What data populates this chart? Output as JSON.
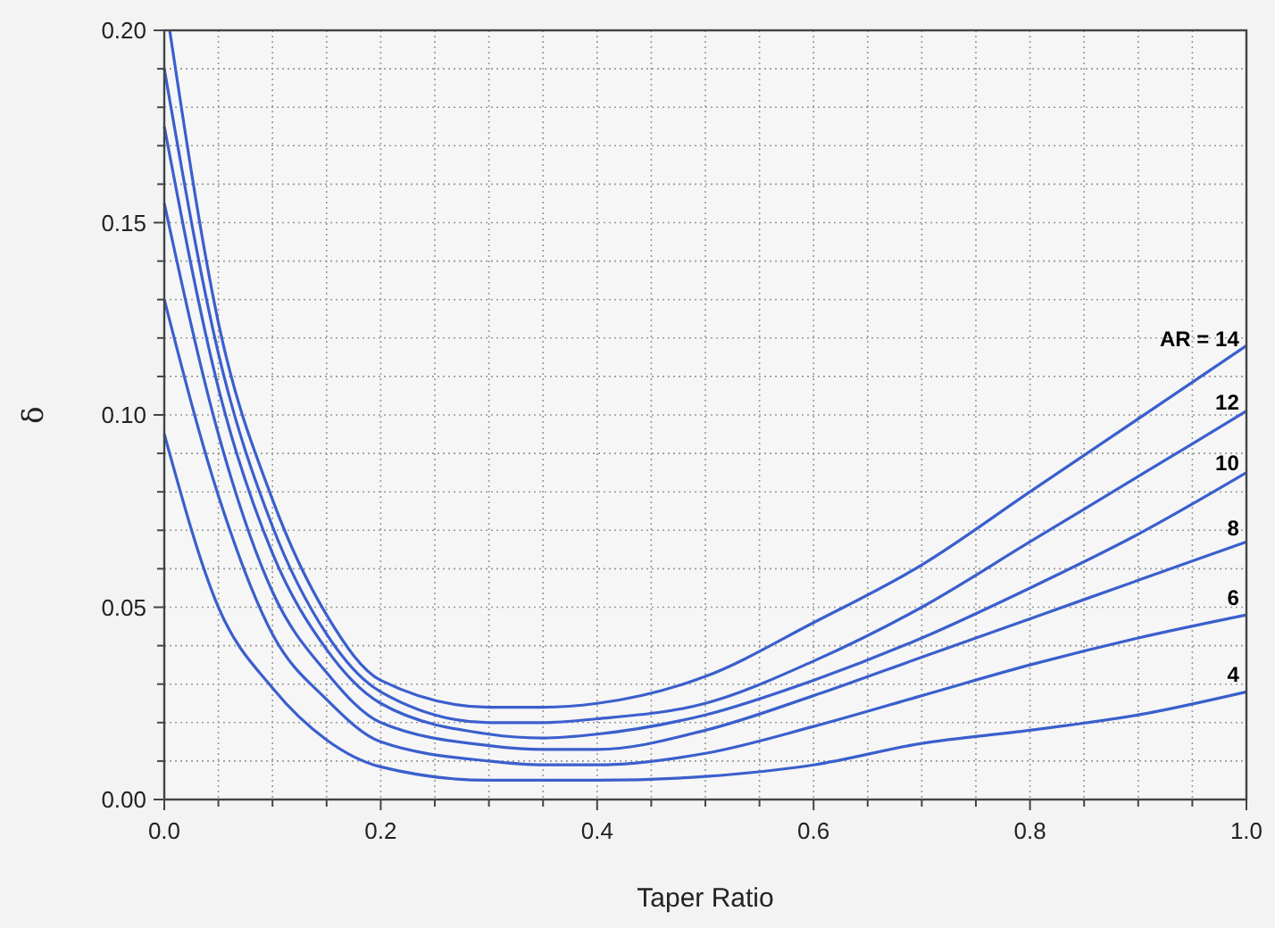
{
  "chart_data": {
    "type": "line",
    "xlabel": "Taper Ratio",
    "ylabel": "δ",
    "xlim": [
      0,
      1
    ],
    "ylim": [
      0,
      0.2
    ],
    "xticks": [
      {
        "value": 0,
        "label": "0.0"
      },
      {
        "value": 0.05,
        "label": null
      },
      {
        "value": 0.1,
        "label": null
      },
      {
        "value": 0.15,
        "label": null
      },
      0.2,
      {
        "value": 0.25,
        "label": null
      },
      {
        "value": 0.3,
        "label": null
      },
      {
        "value": 0.35,
        "label": null
      },
      0.4,
      {
        "value": 0.45,
        "label": null
      },
      {
        "value": 0.5,
        "label": null
      },
      {
        "value": 0.55,
        "label": null
      },
      0.6,
      {
        "value": 0.65,
        "label": null
      },
      {
        "value": 0.7,
        "label": null
      },
      {
        "value": 0.75,
        "label": null
      },
      0.8,
      {
        "value": 0.85,
        "label": null
      },
      {
        "value": 0.9,
        "label": null
      },
      {
        "value": 0.95,
        "label": null
      },
      {
        "value": 1,
        "label": "1.0"
      }
    ],
    "yticks": [
      {
        "value": 0,
        "label": "0.00"
      },
      {
        "value": 0.01,
        "label": null
      },
      {
        "value": 0.02,
        "label": null
      },
      {
        "value": 0.03,
        "label": null
      },
      {
        "value": 0.04,
        "label": null
      },
      {
        "value": 0.05,
        "label": "0.05"
      },
      {
        "value": 0.06,
        "label": null
      },
      {
        "value": 0.07,
        "label": null
      },
      {
        "value": 0.08,
        "label": null
      },
      {
        "value": 0.09,
        "label": null
      },
      {
        "value": 0.1,
        "label": "0.10"
      },
      {
        "value": 0.11,
        "label": null
      },
      {
        "value": 0.12,
        "label": null
      },
      {
        "value": 0.13,
        "label": null
      },
      {
        "value": 0.14,
        "label": null
      },
      {
        "value": 0.15,
        "label": "0.15"
      },
      {
        "value": 0.16,
        "label": null
      },
      {
        "value": 0.17,
        "label": null
      },
      {
        "value": 0.18,
        "label": null
      },
      {
        "value": 0.19,
        "label": null
      },
      {
        "value": 0.2,
        "label": "0.20"
      }
    ],
    "grid": true,
    "marker": "none",
    "line_style": "solid",
    "x": [
      0,
      0.05,
      0.1,
      0.15,
      0.2,
      0.3,
      0.35,
      0.4,
      0.5,
      0.6,
      0.7,
      0.8,
      0.9,
      1.0
    ],
    "series": [
      {
        "name": "AR = 14",
        "color": "#3a5fcd",
        "x": [
          0.005,
          0.05,
          0.1,
          0.15,
          0.2,
          0.3,
          0.35,
          0.4,
          0.5,
          0.6,
          0.7,
          0.8,
          0.9,
          1.0
        ],
        "values": [
          0.2,
          0.124,
          0.078,
          0.048,
          0.031,
          0.024,
          0.024,
          0.025,
          0.032,
          0.046,
          0.061,
          0.08,
          0.099,
          0.118
        ]
      },
      {
        "name": "12",
        "color": "#3a5fcd",
        "values": [
          0.19,
          0.116,
          0.071,
          0.043,
          0.028,
          0.02,
          0.02,
          0.021,
          0.025,
          0.036,
          0.05,
          0.067,
          0.084,
          0.101
        ]
      },
      {
        "name": "10",
        "color": "#3a5fcd",
        "values": [
          0.175,
          0.107,
          0.064,
          0.039,
          0.025,
          0.017,
          0.016,
          0.017,
          0.022,
          0.031,
          0.042,
          0.055,
          0.069,
          0.085
        ]
      },
      {
        "name": "8",
        "color": "#3a5fcd",
        "values": [
          0.155,
          0.095,
          0.054,
          0.033,
          0.02,
          0.014,
          0.013,
          0.013,
          0.018,
          0.027,
          0.037,
          0.047,
          0.057,
          0.067
        ]
      },
      {
        "name": "6",
        "color": "#3a5fcd",
        "values": [
          0.13,
          0.079,
          0.043,
          0.026,
          0.015,
          0.01,
          0.009,
          0.009,
          0.012,
          0.019,
          0.027,
          0.035,
          0.042,
          0.048
        ]
      },
      {
        "name": "4",
        "color": "#3a5fcd",
        "values": [
          0.095,
          0.05,
          0.029,
          0.0155,
          0.0085,
          0.005,
          0.005,
          0.005,
          0.006,
          0.009,
          0.0146,
          0.018,
          0.022,
          0.028
        ]
      }
    ]
  }
}
